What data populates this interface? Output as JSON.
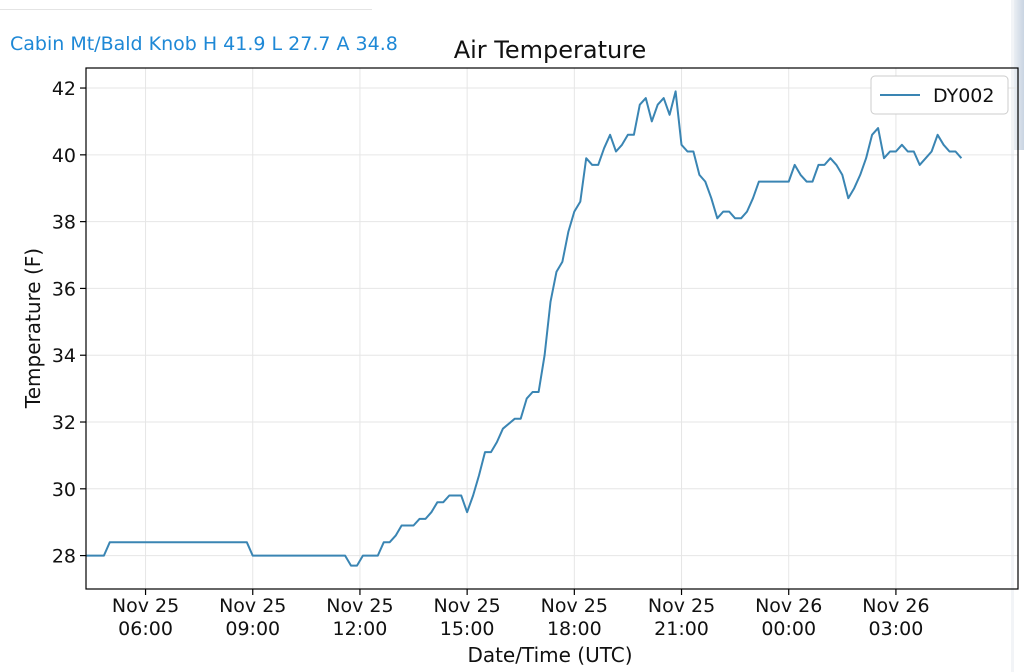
{
  "header": {
    "station_summary": "Cabin Mt/Bald Knob H 41.9 L 27.7 A 34.8",
    "link_color": "#1e88d6"
  },
  "chart_data": {
    "type": "line",
    "title": "Air Temperature",
    "xlabel": "Date/Time (UTC)",
    "ylabel": "Temperature (F)",
    "ylim": [
      27,
      42.6
    ],
    "yticks": [
      28,
      30,
      32,
      34,
      36,
      38,
      40,
      42
    ],
    "xlim": [
      "2020-11-25T04:20",
      "2020-11-26T06:25"
    ],
    "xticks": [
      {
        "t": "2020-11-25T06:00",
        "line1": "Nov 25",
        "line2": "06:00"
      },
      {
        "t": "2020-11-25T09:00",
        "line1": "Nov 25",
        "line2": "09:00"
      },
      {
        "t": "2020-11-25T12:00",
        "line1": "Nov 25",
        "line2": "12:00"
      },
      {
        "t": "2020-11-25T15:00",
        "line1": "Nov 25",
        "line2": "15:00"
      },
      {
        "t": "2020-11-25T18:00",
        "line1": "Nov 25",
        "line2": "18:00"
      },
      {
        "t": "2020-11-25T21:00",
        "line1": "Nov 25",
        "line2": "21:00"
      },
      {
        "t": "2020-11-26T00:00",
        "line1": "Nov 26",
        "line2": "00:00"
      },
      {
        "t": "2020-11-26T03:00",
        "line1": "Nov 26",
        "line2": "03:00"
      }
    ],
    "grid": true,
    "legend_position": "top-right",
    "series": [
      {
        "name": "DY002",
        "color": "#3a85b3",
        "points": [
          [
            "2020-11-25T04:20",
            28.0
          ],
          [
            "2020-11-25T04:50",
            28.0
          ],
          [
            "2020-11-25T05:00",
            28.4
          ],
          [
            "2020-11-25T06:30",
            28.4
          ],
          [
            "2020-11-25T08:00",
            28.4
          ],
          [
            "2020-11-25T08:50",
            28.4
          ],
          [
            "2020-11-25T09:00",
            28.0
          ],
          [
            "2020-11-25T10:30",
            28.0
          ],
          [
            "2020-11-25T11:35",
            28.0
          ],
          [
            "2020-11-25T11:45",
            27.7
          ],
          [
            "2020-11-25T11:55",
            27.7
          ],
          [
            "2020-11-25T12:05",
            28.0
          ],
          [
            "2020-11-25T12:30",
            28.0
          ],
          [
            "2020-11-25T12:40",
            28.4
          ],
          [
            "2020-11-25T12:50",
            28.4
          ],
          [
            "2020-11-25T13:00",
            28.6
          ],
          [
            "2020-11-25T13:10",
            28.9
          ],
          [
            "2020-11-25T13:30",
            28.9
          ],
          [
            "2020-11-25T13:40",
            29.1
          ],
          [
            "2020-11-25T13:50",
            29.1
          ],
          [
            "2020-11-25T14:00",
            29.3
          ],
          [
            "2020-11-25T14:10",
            29.6
          ],
          [
            "2020-11-25T14:20",
            29.6
          ],
          [
            "2020-11-25T14:30",
            29.8
          ],
          [
            "2020-11-25T14:50",
            29.8
          ],
          [
            "2020-11-25T15:00",
            29.3
          ],
          [
            "2020-11-25T15:10",
            29.8
          ],
          [
            "2020-11-25T15:20",
            30.4
          ],
          [
            "2020-11-25T15:30",
            31.1
          ],
          [
            "2020-11-25T15:40",
            31.1
          ],
          [
            "2020-11-25T15:50",
            31.4
          ],
          [
            "2020-11-25T16:00",
            31.8
          ],
          [
            "2020-11-25T16:20",
            32.1
          ],
          [
            "2020-11-25T16:30",
            32.1
          ],
          [
            "2020-11-25T16:40",
            32.7
          ],
          [
            "2020-11-25T16:50",
            32.9
          ],
          [
            "2020-11-25T17:00",
            32.9
          ],
          [
            "2020-11-25T17:10",
            34.0
          ],
          [
            "2020-11-25T17:20",
            35.6
          ],
          [
            "2020-11-25T17:30",
            36.5
          ],
          [
            "2020-11-25T17:40",
            36.8
          ],
          [
            "2020-11-25T17:50",
            37.7
          ],
          [
            "2020-11-25T18:00",
            38.3
          ],
          [
            "2020-11-25T18:10",
            38.6
          ],
          [
            "2020-11-25T18:20",
            39.9
          ],
          [
            "2020-11-25T18:30",
            39.7
          ],
          [
            "2020-11-25T18:40",
            39.7
          ],
          [
            "2020-11-25T18:50",
            40.2
          ],
          [
            "2020-11-25T19:00",
            40.6
          ],
          [
            "2020-11-25T19:10",
            40.1
          ],
          [
            "2020-11-25T19:20",
            40.3
          ],
          [
            "2020-11-25T19:30",
            40.6
          ],
          [
            "2020-11-25T19:40",
            40.6
          ],
          [
            "2020-11-25T19:50",
            41.5
          ],
          [
            "2020-11-25T20:00",
            41.7
          ],
          [
            "2020-11-25T20:10",
            41.0
          ],
          [
            "2020-11-25T20:20",
            41.5
          ],
          [
            "2020-11-25T20:30",
            41.7
          ],
          [
            "2020-11-25T20:40",
            41.2
          ],
          [
            "2020-11-25T20:50",
            41.9
          ],
          [
            "2020-11-25T21:00",
            40.3
          ],
          [
            "2020-11-25T21:10",
            40.1
          ],
          [
            "2020-11-25T21:20",
            40.1
          ],
          [
            "2020-11-25T21:30",
            39.4
          ],
          [
            "2020-11-25T21:40",
            39.2
          ],
          [
            "2020-11-25T21:50",
            38.7
          ],
          [
            "2020-11-25T22:00",
            38.1
          ],
          [
            "2020-11-25T22:10",
            38.3
          ],
          [
            "2020-11-25T22:20",
            38.3
          ],
          [
            "2020-11-25T22:30",
            38.1
          ],
          [
            "2020-11-25T22:40",
            38.1
          ],
          [
            "2020-11-25T22:50",
            38.3
          ],
          [
            "2020-11-25T23:00",
            38.7
          ],
          [
            "2020-11-25T23:10",
            39.2
          ],
          [
            "2020-11-25T23:30",
            39.2
          ],
          [
            "2020-11-26T00:00",
            39.2
          ],
          [
            "2020-11-26T00:10",
            39.7
          ],
          [
            "2020-11-26T00:20",
            39.4
          ],
          [
            "2020-11-26T00:30",
            39.2
          ],
          [
            "2020-11-26T00:40",
            39.2
          ],
          [
            "2020-11-26T00:50",
            39.7
          ],
          [
            "2020-11-26T01:00",
            39.7
          ],
          [
            "2020-11-26T01:10",
            39.9
          ],
          [
            "2020-11-26T01:20",
            39.7
          ],
          [
            "2020-11-26T01:30",
            39.4
          ],
          [
            "2020-11-26T01:40",
            38.7
          ],
          [
            "2020-11-26T01:50",
            39.0
          ],
          [
            "2020-11-26T02:00",
            39.4
          ],
          [
            "2020-11-26T02:10",
            39.9
          ],
          [
            "2020-11-26T02:20",
            40.6
          ],
          [
            "2020-11-26T02:30",
            40.8
          ],
          [
            "2020-11-26T02:40",
            39.9
          ],
          [
            "2020-11-26T02:50",
            40.1
          ],
          [
            "2020-11-26T03:00",
            40.1
          ],
          [
            "2020-11-26T03:10",
            40.3
          ],
          [
            "2020-11-26T03:20",
            40.1
          ],
          [
            "2020-11-26T03:30",
            40.1
          ],
          [
            "2020-11-26T03:40",
            39.7
          ],
          [
            "2020-11-26T03:50",
            39.9
          ],
          [
            "2020-11-26T04:00",
            40.1
          ],
          [
            "2020-11-26T04:10",
            40.6
          ],
          [
            "2020-11-26T04:20",
            40.3
          ],
          [
            "2020-11-26T04:30",
            40.1
          ],
          [
            "2020-11-26T04:40",
            40.1
          ],
          [
            "2020-11-26T04:50",
            39.9
          ]
        ]
      }
    ]
  }
}
